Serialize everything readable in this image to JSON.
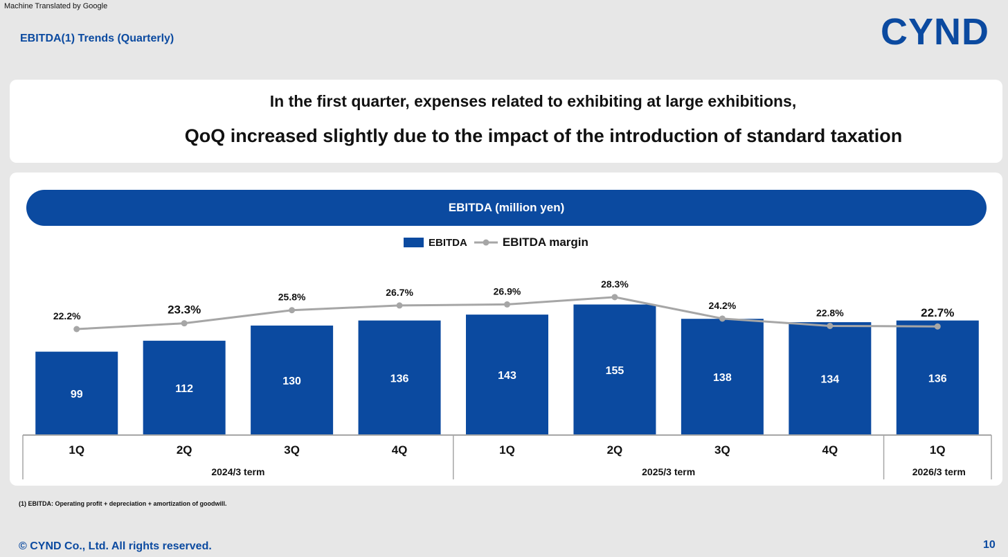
{
  "header": {
    "machine_translated_note": "Machine Translated by Google",
    "title": "EBITDA(1) Trends (Quarterly)",
    "logo_text": "CYND"
  },
  "headline": {
    "line1": "In the first quarter, expenses related to exhibiting at large exhibitions,",
    "line2": "QoQ increased slightly due to the impact of the introduction of standard taxation"
  },
  "chart_data": {
    "type": "bar",
    "title": "EBITDA (million yen)",
    "categories": [
      "1Q",
      "2Q",
      "3Q",
      "4Q",
      "1Q",
      "2Q",
      "3Q",
      "4Q",
      "1Q"
    ],
    "groups": [
      {
        "label": "2024/3 term",
        "count": 4
      },
      {
        "label": "2025/3 term",
        "count": 4
      },
      {
        "label": "2026/3 term",
        "count": 1
      }
    ],
    "series": [
      {
        "name": "EBITDA",
        "type": "bar",
        "values": [
          99,
          112,
          130,
          136,
          143,
          155,
          138,
          134,
          136
        ]
      },
      {
        "name": "EBITDA margin",
        "type": "line",
        "values": [
          22.2,
          23.3,
          25.8,
          26.7,
          26.9,
          28.3,
          24.2,
          22.8,
          22.7
        ],
        "labels": [
          "22.2%",
          "23.3%",
          "25.8%",
          "26.7%",
          "26.9%",
          "28.3%",
          "24.2%",
          "22.8%",
          "22.7%"
        ]
      }
    ],
    "legend": [
      "EBITDA",
      "EBITDA margin"
    ],
    "legend_position": "top-center",
    "colors": {
      "bar": "#0b4aa0",
      "line": "#a6a6a6"
    }
  },
  "footer": {
    "footnote": "(1) EBITDA: Operating profit + depreciation + amortization of goodwill.",
    "copyright": "© CYND Co., Ltd. All rights reserved.",
    "page_number": "10"
  }
}
